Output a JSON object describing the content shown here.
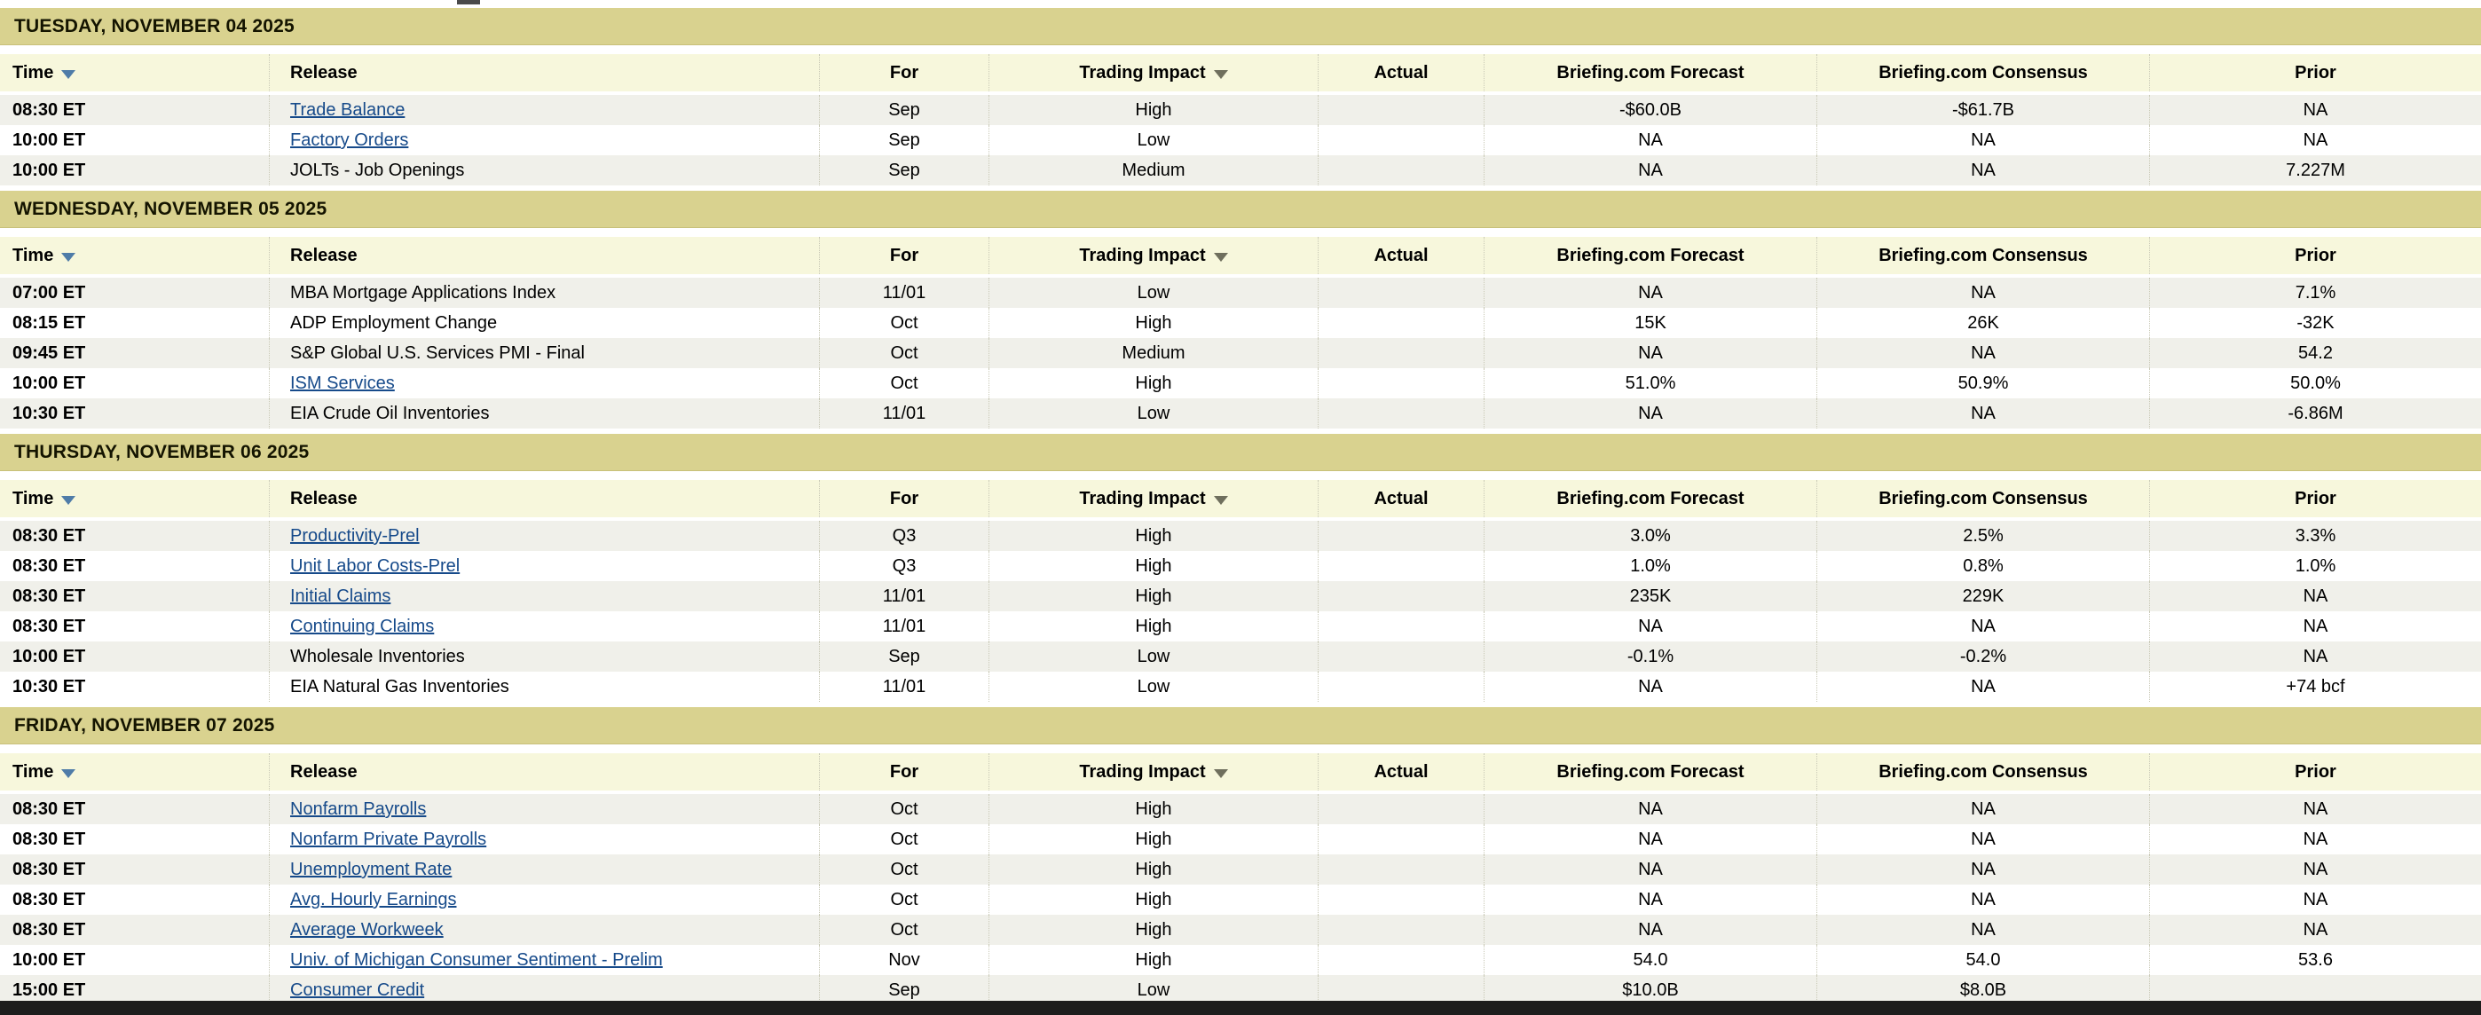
{
  "page": {
    "day_header_bg": "#d9d28f",
    "column_header_bg": "#f7f7dc",
    "row_alt_bg": "#f0f0ea",
    "link_color": "#164a8a",
    "sort_icon_color": "#4f7ca8",
    "bottom_bar_color": "#1d1d1d"
  },
  "columns": [
    {
      "key": "time",
      "label": "Time",
      "align": "left",
      "icon": "sort-down-icon",
      "interactable": true
    },
    {
      "key": "release",
      "label": "Release",
      "align": "left",
      "icon": "",
      "interactable": false
    },
    {
      "key": "for",
      "label": "For",
      "align": "center",
      "icon": "",
      "interactable": false
    },
    {
      "key": "impact",
      "label": "Trading Impact",
      "align": "center",
      "icon": "filter-dropdown-icon",
      "interactable": true
    },
    {
      "key": "actual",
      "label": "Actual",
      "align": "center",
      "icon": "",
      "interactable": false
    },
    {
      "key": "forecast",
      "label": "Briefing.com Forecast",
      "align": "center",
      "icon": "",
      "interactable": false
    },
    {
      "key": "consensus",
      "label": "Briefing.com Consensus",
      "align": "center",
      "icon": "",
      "interactable": false
    },
    {
      "key": "prior",
      "label": "Prior",
      "align": "center",
      "icon": "",
      "interactable": false
    }
  ],
  "days": [
    {
      "date_header": "TUESDAY, NOVEMBER 04 2025",
      "rows": [
        {
          "time": "08:30 ET",
          "release": "Trade Balance",
          "is_link": true,
          "for": "Sep",
          "impact": "High",
          "actual": "",
          "forecast": "-$60.0B",
          "consensus": "-$61.7B",
          "prior": "NA"
        },
        {
          "time": "10:00 ET",
          "release": "Factory Orders",
          "is_link": true,
          "for": "Sep",
          "impact": "Low",
          "actual": "",
          "forecast": "NA",
          "consensus": "NA",
          "prior": "NA"
        },
        {
          "time": "10:00 ET",
          "release": "JOLTs - Job Openings",
          "is_link": false,
          "for": "Sep",
          "impact": "Medium",
          "actual": "",
          "forecast": "NA",
          "consensus": "NA",
          "prior": "7.227M"
        }
      ]
    },
    {
      "date_header": "WEDNESDAY, NOVEMBER 05 2025",
      "rows": [
        {
          "time": "07:00 ET",
          "release": "MBA Mortgage Applications Index",
          "is_link": false,
          "for": "11/01",
          "impact": "Low",
          "actual": "",
          "forecast": "NA",
          "consensus": "NA",
          "prior": "7.1%"
        },
        {
          "time": "08:15 ET",
          "release": "ADP Employment Change",
          "is_link": false,
          "for": "Oct",
          "impact": "High",
          "actual": "",
          "forecast": "15K",
          "consensus": "26K",
          "prior": "-32K"
        },
        {
          "time": "09:45 ET",
          "release": "S&P Global U.S. Services PMI - Final",
          "is_link": false,
          "for": "Oct",
          "impact": "Medium",
          "actual": "",
          "forecast": "NA",
          "consensus": "NA",
          "prior": "54.2"
        },
        {
          "time": "10:00 ET",
          "release": "ISM Services",
          "is_link": true,
          "for": "Oct",
          "impact": "High",
          "actual": "",
          "forecast": "51.0%",
          "consensus": "50.9%",
          "prior": "50.0%"
        },
        {
          "time": "10:30 ET",
          "release": "EIA Crude Oil Inventories",
          "is_link": false,
          "for": "11/01",
          "impact": "Low",
          "actual": "",
          "forecast": "NA",
          "consensus": "NA",
          "prior": "-6.86M"
        }
      ]
    },
    {
      "date_header": "THURSDAY, NOVEMBER 06 2025",
      "rows": [
        {
          "time": "08:30 ET",
          "release": "Productivity-Prel",
          "is_link": true,
          "for": "Q3",
          "impact": "High",
          "actual": "",
          "forecast": "3.0%",
          "consensus": "2.5%",
          "prior": "3.3%"
        },
        {
          "time": "08:30 ET",
          "release": "Unit Labor Costs-Prel",
          "is_link": true,
          "for": "Q3",
          "impact": "High",
          "actual": "",
          "forecast": "1.0%",
          "consensus": "0.8%",
          "prior": "1.0%"
        },
        {
          "time": "08:30 ET",
          "release": "Initial Claims",
          "is_link": true,
          "for": "11/01",
          "impact": "High",
          "actual": "",
          "forecast": "235K",
          "consensus": "229K",
          "prior": "NA"
        },
        {
          "time": "08:30 ET",
          "release": "Continuing Claims",
          "is_link": true,
          "for": "11/01",
          "impact": "High",
          "actual": "",
          "forecast": "NA",
          "consensus": "NA",
          "prior": "NA"
        },
        {
          "time": "10:00 ET",
          "release": "Wholesale Inventories",
          "is_link": false,
          "for": "Sep",
          "impact": "Low",
          "actual": "",
          "forecast": "-0.1%",
          "consensus": "-0.2%",
          "prior": "NA"
        },
        {
          "time": "10:30 ET",
          "release": "EIA Natural Gas Inventories",
          "is_link": false,
          "for": "11/01",
          "impact": "Low",
          "actual": "",
          "forecast": "NA",
          "consensus": "NA",
          "prior": "+74 bcf"
        }
      ]
    },
    {
      "date_header": "FRIDAY, NOVEMBER 07 2025",
      "rows": [
        {
          "time": "08:30 ET",
          "release": "Nonfarm Payrolls",
          "is_link": true,
          "for": "Oct",
          "impact": "High",
          "actual": "",
          "forecast": "NA",
          "consensus": "NA",
          "prior": "NA"
        },
        {
          "time": "08:30 ET",
          "release": "Nonfarm Private Payrolls",
          "is_link": true,
          "for": "Oct",
          "impact": "High",
          "actual": "",
          "forecast": "NA",
          "consensus": "NA",
          "prior": "NA"
        },
        {
          "time": "08:30 ET",
          "release": "Unemployment Rate",
          "is_link": true,
          "for": "Oct",
          "impact": "High",
          "actual": "",
          "forecast": "NA",
          "consensus": "NA",
          "prior": "NA"
        },
        {
          "time": "08:30 ET",
          "release": "Avg. Hourly Earnings",
          "is_link": true,
          "for": "Oct",
          "impact": "High",
          "actual": "",
          "forecast": "NA",
          "consensus": "NA",
          "prior": "NA"
        },
        {
          "time": "08:30 ET",
          "release": "Average Workweek",
          "is_link": true,
          "for": "Oct",
          "impact": "High",
          "actual": "",
          "forecast": "NA",
          "consensus": "NA",
          "prior": "NA"
        },
        {
          "time": "10:00 ET",
          "release": "Univ. of Michigan Consumer Sentiment - Prelim",
          "is_link": true,
          "for": "Nov",
          "impact": "High",
          "actual": "",
          "forecast": "54.0",
          "consensus": "54.0",
          "prior": "53.6"
        },
        {
          "time": "15:00 ET",
          "release": "Consumer Credit",
          "is_link": true,
          "for": "Sep",
          "impact": "Low",
          "actual": "",
          "forecast": "$10.0B",
          "consensus": "$8.0B",
          "prior": ""
        }
      ]
    }
  ]
}
